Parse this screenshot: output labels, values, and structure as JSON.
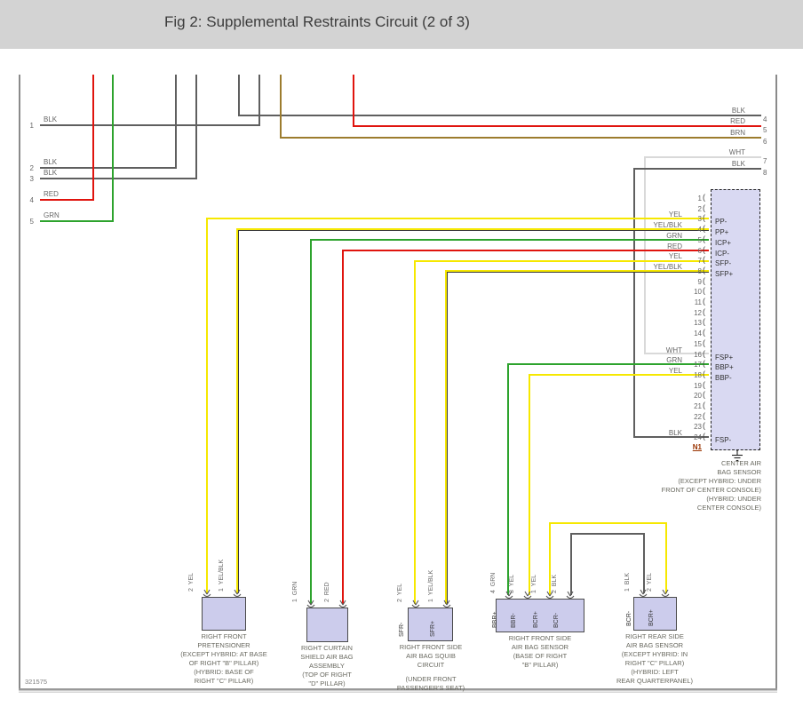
{
  "title": "Fig 2: Supplemental Restraints Circuit (2 of 3)",
  "figure_number": "321575",
  "colors": {
    "titlebar_bg": "#d3d3d3",
    "wire_black": "#5f5f5f",
    "wire_white": "#d9d9d9",
    "wire_red": "#e0140e",
    "wire_green": "#2da32d",
    "wire_yellow": "#f6e800",
    "wire_yellow_black_tracer": "#3a3a3a",
    "wire_brown": "#9c7c2e",
    "connector_fill": "#d9d9f2",
    "component_fill": "#ccccec",
    "label_text": "#666666",
    "link_text": "#993300"
  },
  "left_connector": {
    "pins": [
      {
        "number": "1",
        "color": "BLK"
      },
      {
        "number": "2",
        "color": "BLK"
      },
      {
        "number": "3",
        "color": "BLK"
      },
      {
        "number": "4",
        "color": "RED"
      },
      {
        "number": "5",
        "color": "GRN"
      }
    ]
  },
  "right_connector": {
    "pins": [
      {
        "number": "4",
        "color": "BLK"
      },
      {
        "number": "5",
        "color": "RED"
      },
      {
        "number": "6",
        "color": "BRN"
      },
      {
        "number": "7",
        "color": "WHT"
      },
      {
        "number": "8",
        "color": "BLK"
      }
    ]
  },
  "center_sensor": {
    "name_lines": [
      "CENTER AIR",
      "BAG SENSOR",
      "(EXCEPT HYBRID: UNDER",
      "FRONT OF CENTER CONSOLE)",
      "(HYBRID: UNDER",
      "CENTER CONSOLE)"
    ],
    "pins": [
      {
        "number": "1"
      },
      {
        "number": "2"
      },
      {
        "number": "3",
        "wire_color": "YEL",
        "label": "PP-"
      },
      {
        "number": "4",
        "wire_color": "YEL/BLK",
        "label": "PP+"
      },
      {
        "number": "5",
        "wire_color": "GRN",
        "label": "ICP+"
      },
      {
        "number": "6",
        "wire_color": "RED",
        "label": "ICP-"
      },
      {
        "number": "7",
        "wire_color": "YEL",
        "label": "SFP-"
      },
      {
        "number": "8",
        "wire_color": "YEL/BLK",
        "label": "SFP+"
      },
      {
        "number": "9"
      },
      {
        "number": "10"
      },
      {
        "number": "11"
      },
      {
        "number": "12"
      },
      {
        "number": "13"
      },
      {
        "number": "14"
      },
      {
        "number": "15"
      },
      {
        "number": "16",
        "wire_color": "WHT",
        "label": "FSP+"
      },
      {
        "number": "17",
        "wire_color": "GRN",
        "label": "BBP+"
      },
      {
        "number": "18",
        "wire_color": "YEL",
        "label": "BBP-"
      },
      {
        "number": "19"
      },
      {
        "number": "20"
      },
      {
        "number": "21"
      },
      {
        "number": "22"
      },
      {
        "number": "23"
      },
      {
        "number": "24",
        "wire_color": "BLK",
        "label": "FSP-"
      },
      {
        "number": "N1",
        "underlined": true
      }
    ]
  },
  "components": [
    {
      "id": "right-front-pretensioner",
      "caption_lines": [
        "RIGHT FRONT",
        "PRETENSIONER",
        "(EXCEPT HYBRID: AT BASE",
        "OF RIGHT \"B\" PILLAR)",
        "(HYBRID: BASE OF",
        "RIGHT \"C\" PILLAR)"
      ],
      "pins": [
        {
          "number": "2",
          "wire_color": "YEL"
        },
        {
          "number": "1",
          "wire_color": "YEL/BLK"
        }
      ]
    },
    {
      "id": "right-curtain-shield-air-bag-assembly",
      "caption_lines": [
        "RIGHT CURTAIN",
        "SHIELD AIR BAG",
        "ASSEMBLY",
        "(TOP OF RIGHT",
        "\"D\" PILLAR)"
      ],
      "pins": [
        {
          "number": "1",
          "wire_color": "GRN"
        },
        {
          "number": "2",
          "wire_color": "RED"
        }
      ]
    },
    {
      "id": "right-front-side-air-bag-squib-circuit",
      "caption_lines": [
        "RIGHT FRONT SIDE",
        "AIR BAG SQUIB",
        "CIRCUIT",
        "",
        "(UNDER FRONT",
        "PASSENGER'S SEAT)"
      ],
      "pins": [
        {
          "number": "2",
          "wire_color": "YEL",
          "label": "SFR-"
        },
        {
          "number": "1",
          "wire_color": "YEL/BLK",
          "label": "SFR+"
        }
      ]
    },
    {
      "id": "right-front-side-air-bag-sensor",
      "caption_lines": [
        "RIGHT FRONT SIDE",
        "AIR BAG SENSOR",
        "(BASE OF RIGHT",
        "\"B\" PILLAR)"
      ],
      "pins": [
        {
          "number": "4",
          "wire_color": "GRN",
          "label": "BBR+"
        },
        {
          "number": "3",
          "wire_color": "YEL",
          "label": "BBR-"
        },
        {
          "number": "1",
          "wire_color": "YEL",
          "label": "BCR+"
        },
        {
          "number": "2",
          "wire_color": "BLK",
          "label": "BCR-"
        }
      ]
    },
    {
      "id": "right-rear-side-air-bag-sensor",
      "caption_lines": [
        "RIGHT REAR SIDE",
        "AIR BAG SENSOR",
        "(EXCEPT HYBRID: IN",
        "RIGHT \"C\" PILLAR)",
        "(HYBRID: LEFT",
        "REAR QUARTERPANEL)"
      ],
      "pins": [
        {
          "number": "1",
          "wire_color": "BLK",
          "label": "BCR-"
        },
        {
          "number": "2",
          "wire_color": "YEL",
          "label": "BCR+"
        }
      ]
    }
  ]
}
